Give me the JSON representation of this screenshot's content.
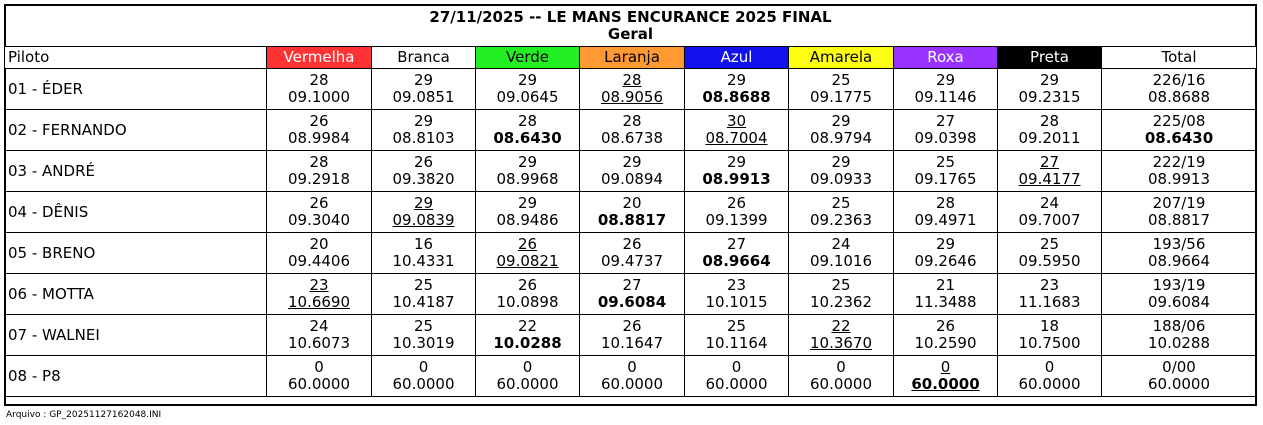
{
  "title": "27/11/2025 -- LE MANS ENCURANCE 2025 FINAL",
  "subtitle": "Geral",
  "headers": [
    {
      "label": "Piloto",
      "bg": "#ffffff",
      "fg": "#000000"
    },
    {
      "label": "Vermelha",
      "bg": "#ff3333",
      "fg": "#ffffff"
    },
    {
      "label": "Branca",
      "bg": "#ffffff",
      "fg": "#000000"
    },
    {
      "label": "Verde",
      "bg": "#22ee22",
      "fg": "#000000"
    },
    {
      "label": "Laranja",
      "bg": "#ff9933",
      "fg": "#000000"
    },
    {
      "label": "Azul",
      "bg": "#1111ee",
      "fg": "#ffffff"
    },
    {
      "label": "Amarela",
      "bg": "#ffff11",
      "fg": "#000000"
    },
    {
      "label": "Roxa",
      "bg": "#9933ff",
      "fg": "#ffffff"
    },
    {
      "label": "Preta",
      "bg": "#000000",
      "fg": "#ffffff"
    },
    {
      "label": "Total",
      "bg": "#ffffff",
      "fg": "#000000"
    }
  ],
  "rows": [
    {
      "name": "01 - ÉDER",
      "cells": [
        {
          "laps": "28",
          "time": "09.1000",
          "u": false,
          "b": false
        },
        {
          "laps": "29",
          "time": "09.0851",
          "u": false,
          "b": false
        },
        {
          "laps": "29",
          "time": "09.0645",
          "u": false,
          "b": false
        },
        {
          "laps": "28",
          "time": "08.9056",
          "u": true,
          "b": false
        },
        {
          "laps": "29",
          "time": "08.8688",
          "u": false,
          "b": true
        },
        {
          "laps": "25",
          "time": "09.1775",
          "u": false,
          "b": false
        },
        {
          "laps": "29",
          "time": "09.1146",
          "u": false,
          "b": false
        },
        {
          "laps": "29",
          "time": "09.2315",
          "u": false,
          "b": false
        },
        {
          "laps": "226/16",
          "time": "08.8688",
          "u": false,
          "b": false
        }
      ]
    },
    {
      "name": "02 - FERNANDO",
      "cells": [
        {
          "laps": "26",
          "time": "08.9984",
          "u": false,
          "b": false
        },
        {
          "laps": "29",
          "time": "08.8103",
          "u": false,
          "b": false
        },
        {
          "laps": "28",
          "time": "08.6430",
          "u": false,
          "b": true
        },
        {
          "laps": "28",
          "time": "08.6738",
          "u": false,
          "b": false
        },
        {
          "laps": "30",
          "time": "08.7004",
          "u": true,
          "b": false
        },
        {
          "laps": "29",
          "time": "08.9794",
          "u": false,
          "b": false
        },
        {
          "laps": "27",
          "time": "09.0398",
          "u": false,
          "b": false
        },
        {
          "laps": "28",
          "time": "09.2011",
          "u": false,
          "b": false
        },
        {
          "laps": "225/08",
          "time": "08.6430",
          "u": false,
          "b": true
        }
      ]
    },
    {
      "name": "03 - ANDRÉ",
      "cells": [
        {
          "laps": "28",
          "time": "09.2918",
          "u": false,
          "b": false
        },
        {
          "laps": "26",
          "time": "09.3820",
          "u": false,
          "b": false
        },
        {
          "laps": "29",
          "time": "08.9968",
          "u": false,
          "b": false
        },
        {
          "laps": "29",
          "time": "09.0894",
          "u": false,
          "b": false
        },
        {
          "laps": "29",
          "time": "08.9913",
          "u": false,
          "b": true
        },
        {
          "laps": "29",
          "time": "09.0933",
          "u": false,
          "b": false
        },
        {
          "laps": "25",
          "time": "09.1765",
          "u": false,
          "b": false
        },
        {
          "laps": "27",
          "time": "09.4177",
          "u": true,
          "b": false
        },
        {
          "laps": "222/19",
          "time": "08.9913",
          "u": false,
          "b": false
        }
      ]
    },
    {
      "name": "04 - DÊNIS",
      "cells": [
        {
          "laps": "26",
          "time": "09.3040",
          "u": false,
          "b": false
        },
        {
          "laps": "29",
          "time": "09.0839",
          "u": true,
          "b": false
        },
        {
          "laps": "29",
          "time": "08.9486",
          "u": false,
          "b": false
        },
        {
          "laps": "20",
          "time": "08.8817",
          "u": false,
          "b": true
        },
        {
          "laps": "26",
          "time": "09.1399",
          "u": false,
          "b": false
        },
        {
          "laps": "25",
          "time": "09.2363",
          "u": false,
          "b": false
        },
        {
          "laps": "28",
          "time": "09.4971",
          "u": false,
          "b": false
        },
        {
          "laps": "24",
          "time": "09.7007",
          "u": false,
          "b": false
        },
        {
          "laps": "207/19",
          "time": "08.8817",
          "u": false,
          "b": false
        }
      ]
    },
    {
      "name": "05 - BRENO",
      "cells": [
        {
          "laps": "20",
          "time": "09.4406",
          "u": false,
          "b": false
        },
        {
          "laps": "16",
          "time": "10.4331",
          "u": false,
          "b": false
        },
        {
          "laps": "26",
          "time": "09.0821",
          "u": true,
          "b": false
        },
        {
          "laps": "26",
          "time": "09.4737",
          "u": false,
          "b": false
        },
        {
          "laps": "27",
          "time": "08.9664",
          "u": false,
          "b": true
        },
        {
          "laps": "24",
          "time": "09.1016",
          "u": false,
          "b": false
        },
        {
          "laps": "29",
          "time": "09.2646",
          "u": false,
          "b": false
        },
        {
          "laps": "25",
          "time": "09.5950",
          "u": false,
          "b": false
        },
        {
          "laps": "193/56",
          "time": "08.9664",
          "u": false,
          "b": false
        }
      ]
    },
    {
      "name": "06 - MOTTA",
      "cells": [
        {
          "laps": "23",
          "time": "10.6690",
          "u": true,
          "b": false
        },
        {
          "laps": "25",
          "time": "10.4187",
          "u": false,
          "b": false
        },
        {
          "laps": "26",
          "time": "10.0898",
          "u": false,
          "b": false
        },
        {
          "laps": "27",
          "time": "09.6084",
          "u": false,
          "b": true
        },
        {
          "laps": "23",
          "time": "10.1015",
          "u": false,
          "b": false
        },
        {
          "laps": "25",
          "time": "10.2362",
          "u": false,
          "b": false
        },
        {
          "laps": "21",
          "time": "11.3488",
          "u": false,
          "b": false
        },
        {
          "laps": "23",
          "time": "11.1683",
          "u": false,
          "b": false
        },
        {
          "laps": "193/19",
          "time": "09.6084",
          "u": false,
          "b": false
        }
      ]
    },
    {
      "name": "07 - WALNEI",
      "cells": [
        {
          "laps": "24",
          "time": "10.6073",
          "u": false,
          "b": false
        },
        {
          "laps": "25",
          "time": "10.3019",
          "u": false,
          "b": false
        },
        {
          "laps": "22",
          "time": "10.0288",
          "u": false,
          "b": true
        },
        {
          "laps": "26",
          "time": "10.1647",
          "u": false,
          "b": false
        },
        {
          "laps": "25",
          "time": "10.1164",
          "u": false,
          "b": false
        },
        {
          "laps": "22",
          "time": "10.3670",
          "u": true,
          "b": false
        },
        {
          "laps": "26",
          "time": "10.2590",
          "u": false,
          "b": false
        },
        {
          "laps": "18",
          "time": "10.7500",
          "u": false,
          "b": false
        },
        {
          "laps": "188/06",
          "time": "10.0288",
          "u": false,
          "b": false
        }
      ]
    },
    {
      "name": "08 - P8",
      "cells": [
        {
          "laps": "0",
          "time": "60.0000",
          "u": false,
          "b": false
        },
        {
          "laps": "0",
          "time": "60.0000",
          "u": false,
          "b": false
        },
        {
          "laps": "0",
          "time": "60.0000",
          "u": false,
          "b": false
        },
        {
          "laps": "0",
          "time": "60.0000",
          "u": false,
          "b": false
        },
        {
          "laps": "0",
          "time": "60.0000",
          "u": false,
          "b": false
        },
        {
          "laps": "0",
          "time": "60.0000",
          "u": false,
          "b": false
        },
        {
          "laps": "0",
          "time": "60.0000",
          "u": true,
          "b": true
        },
        {
          "laps": "0",
          "time": "60.0000",
          "u": false,
          "b": false
        },
        {
          "laps": "0/00",
          "time": "60.0000",
          "u": false,
          "b": false
        }
      ]
    }
  ],
  "footer": "Arquivo : GP_20251127162048.INI"
}
